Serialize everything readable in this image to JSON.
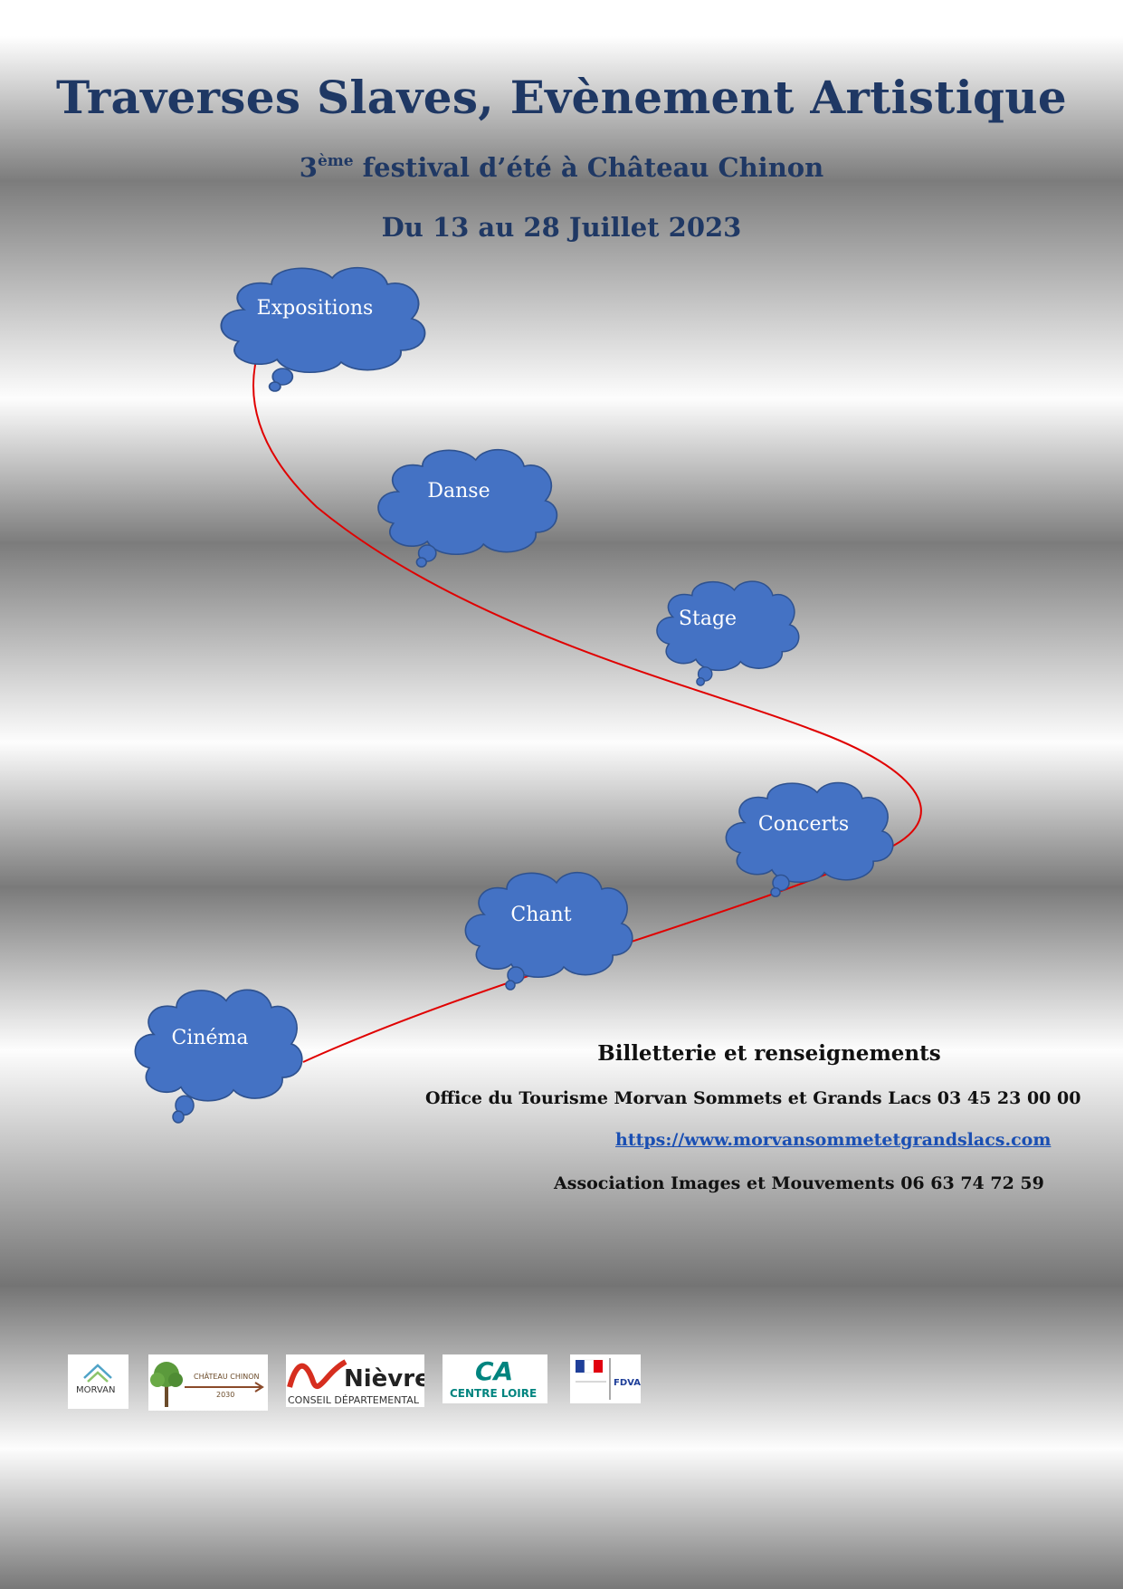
{
  "header": {
    "title": "Traverses Slaves, Evènement Artistique",
    "subtitle_ordinal": "3",
    "subtitle_sup": "ème",
    "subtitle_rest": " festival d’été à Château Chinon",
    "dates": "Du 13 au 28 Juillet 2023"
  },
  "clouds": [
    {
      "label": "Expositions"
    },
    {
      "label": "Danse"
    },
    {
      "label": "Stage"
    },
    {
      "label": "Concerts"
    },
    {
      "label": "Chant"
    },
    {
      "label": "Cinéma"
    }
  ],
  "info": {
    "heading": "Billetterie et renseignements",
    "office": "Office du Tourisme Morvan Sommets et Grands Lacs   03 45 23 00 00",
    "url": "https://www.morvansommetetgrandslacs.com",
    "association": "Association Images et Mouvements 06 63 74 72 59"
  },
  "logos": {
    "morvan": "MORVAN",
    "chateau": "CHÂTEAU CHINON",
    "chateau_year": "2030",
    "nievre": "Nièvre",
    "nievre_sub": "CONSEIL DÉPARTEMENTAL",
    "ca": "CA",
    "ca_sub": "CENTRE LOIRE",
    "fdva": "FDVA"
  },
  "colors": {
    "title": "#1f3864",
    "cloud_fill": "#4472c4",
    "cloud_stroke": "#2f528f",
    "flow_line": "#e00000",
    "link": "#1a4fb3"
  }
}
